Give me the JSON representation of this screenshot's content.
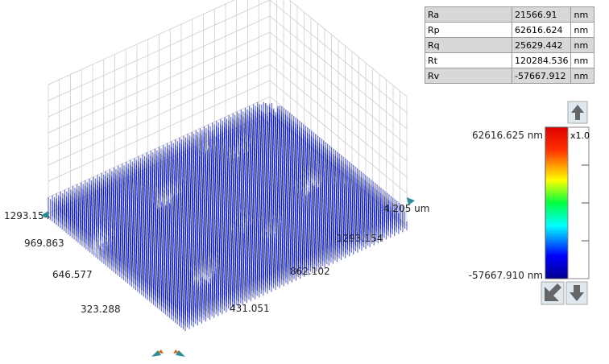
{
  "table": {
    "rows": [
      [
        "Ra",
        "21566.91",
        "nm"
      ],
      [
        "Rp",
        "62616.624",
        "nm"
      ],
      [
        "Rq",
        "25629.442",
        "nm"
      ],
      [
        "Rt",
        "120284.536",
        "nm"
      ],
      [
        "Rv",
        "-57667.912",
        "nm"
      ]
    ]
  },
  "colorbar": {
    "max_label": "62616.625 nm",
    "min_label": "-57667.910 nm",
    "scale": "x1.0"
  },
  "axes": {
    "left": [
      "1293.154",
      "969.863",
      "646.577",
      "323.288"
    ],
    "right": [
      "431.051",
      "862.102",
      "1293.154",
      "4.205 um"
    ]
  }
}
